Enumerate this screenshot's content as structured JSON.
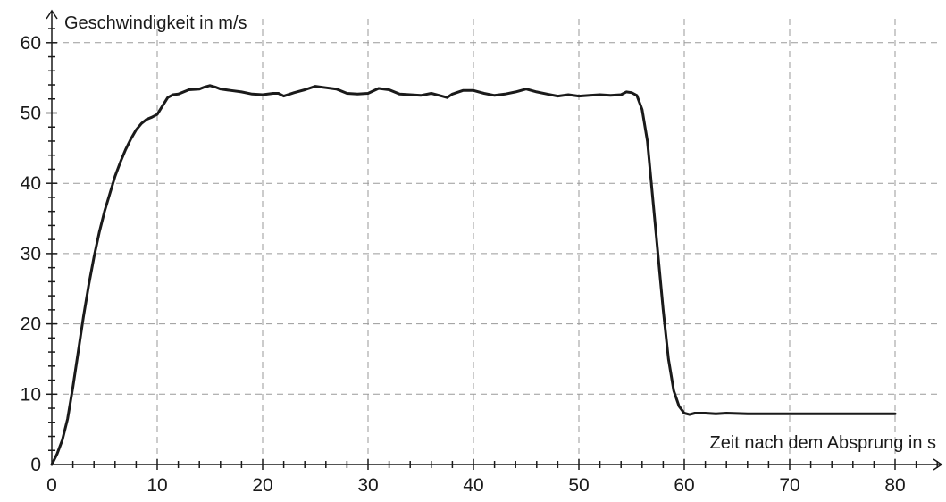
{
  "chart_data": {
    "type": "line",
    "xlabel": "Zeit nach dem Absprung in s",
    "ylabel": "Geschwindigkeit in m/s",
    "xlim": [
      0,
      84
    ],
    "ylim": [
      0,
      63
    ],
    "x_ticks": [
      0,
      10,
      20,
      30,
      40,
      50,
      60,
      70,
      80
    ],
    "y_ticks": [
      0,
      10,
      20,
      30,
      40,
      50,
      60
    ],
    "x_tick_labels": [
      "0",
      "10",
      "20",
      "30",
      "40",
      "50",
      "60",
      "70",
      "80"
    ],
    "y_tick_labels": [
      "0",
      "10",
      "20",
      "30",
      "40",
      "50",
      "60"
    ],
    "x_minor_step": 2,
    "y_minor_step": 2,
    "grid": true,
    "colors": {
      "line": "#1a1a1a",
      "grid": "#9a9a9a",
      "axis": "#1a1a1a"
    },
    "series": [
      {
        "points": [
          [
            0,
            0
          ],
          [
            0.5,
            1.5
          ],
          [
            1,
            3.5
          ],
          [
            1.5,
            6.5
          ],
          [
            2,
            11
          ],
          [
            2.5,
            16
          ],
          [
            3,
            21
          ],
          [
            3.5,
            25.5
          ],
          [
            4,
            29.5
          ],
          [
            4.5,
            33
          ],
          [
            5,
            36
          ],
          [
            5.5,
            38.5
          ],
          [
            6,
            41
          ],
          [
            6.5,
            43
          ],
          [
            7,
            44.8
          ],
          [
            7.5,
            46.3
          ],
          [
            8,
            47.6
          ],
          [
            8.5,
            48.5
          ],
          [
            9,
            49.1
          ],
          [
            9.5,
            49.4
          ],
          [
            10,
            49.8
          ],
          [
            10.5,
            51
          ],
          [
            11,
            52.2
          ],
          [
            11.5,
            52.6
          ],
          [
            12,
            52.7
          ],
          [
            13,
            53.3
          ],
          [
            14,
            53.4
          ],
          [
            14.5,
            53.7
          ],
          [
            15,
            53.9
          ],
          [
            15.5,
            53.7
          ],
          [
            16,
            53.4
          ],
          [
            17,
            53.2
          ],
          [
            18,
            53
          ],
          [
            19,
            52.7
          ],
          [
            20,
            52.6
          ],
          [
            21,
            52.8
          ],
          [
            21.5,
            52.8
          ],
          [
            22,
            52.4
          ],
          [
            23,
            52.9
          ],
          [
            24,
            53.3
          ],
          [
            25,
            53.8
          ],
          [
            26,
            53.6
          ],
          [
            27,
            53.4
          ],
          [
            28,
            52.8
          ],
          [
            29,
            52.7
          ],
          [
            30,
            52.8
          ],
          [
            31,
            53.5
          ],
          [
            32,
            53.3
          ],
          [
            33,
            52.7
          ],
          [
            34,
            52.6
          ],
          [
            35,
            52.5
          ],
          [
            36,
            52.8
          ],
          [
            37,
            52.4
          ],
          [
            37.5,
            52.2
          ],
          [
            38,
            52.7
          ],
          [
            39,
            53.2
          ],
          [
            40,
            53.2
          ],
          [
            41,
            52.8
          ],
          [
            42,
            52.5
          ],
          [
            43,
            52.7
          ],
          [
            44,
            53
          ],
          [
            45,
            53.4
          ],
          [
            46,
            53
          ],
          [
            47,
            52.7
          ],
          [
            48,
            52.4
          ],
          [
            49,
            52.6
          ],
          [
            50,
            52.4
          ],
          [
            51,
            52.5
          ],
          [
            52,
            52.6
          ],
          [
            53,
            52.5
          ],
          [
            54,
            52.6
          ],
          [
            54.5,
            53
          ],
          [
            55,
            52.9
          ],
          [
            55.5,
            52.5
          ],
          [
            56,
            50.5
          ],
          [
            56.5,
            46
          ],
          [
            57,
            38
          ],
          [
            57.5,
            30
          ],
          [
            58,
            22
          ],
          [
            58.5,
            15
          ],
          [
            59,
            10.5
          ],
          [
            59.5,
            8.3
          ],
          [
            60,
            7.3
          ],
          [
            60.5,
            7.1
          ],
          [
            61,
            7.3
          ],
          [
            62,
            7.3
          ],
          [
            63,
            7.2
          ],
          [
            64,
            7.3
          ],
          [
            66,
            7.2
          ],
          [
            70,
            7.2
          ],
          [
            75,
            7.2
          ],
          [
            80,
            7.2
          ]
        ]
      }
    ]
  }
}
